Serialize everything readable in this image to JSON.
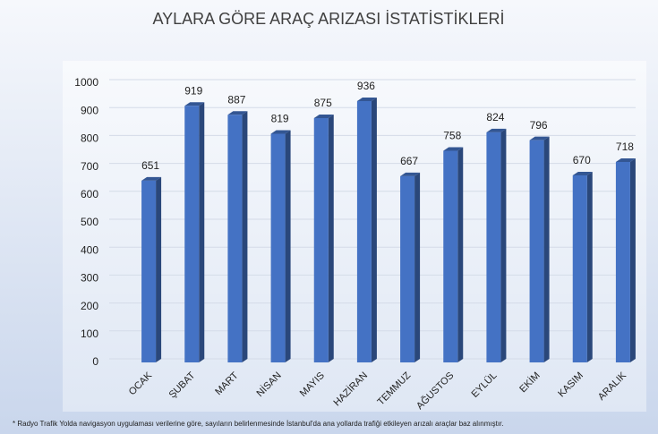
{
  "chart_data": {
    "type": "bar3d",
    "title": "AYLARA GÖRE ARAÇ ARIZASI İSTATİSTİKLERİ",
    "categories": [
      "OCAK",
      "ŞUBAT",
      "MART",
      "NİSAN",
      "MAYIS",
      "HAZİRAN",
      "TEMMUZ",
      "AĞUSTOS",
      "EYLÜL",
      "EKİM",
      "KASIM",
      "ARALIK"
    ],
    "values": [
      651,
      919,
      887,
      819,
      875,
      936,
      667,
      758,
      824,
      796,
      670,
      718
    ],
    "color": "#4472c4",
    "ylim": [
      0,
      1000
    ],
    "yticks": [
      0,
      100,
      200,
      300,
      400,
      500,
      600,
      700,
      800,
      900,
      1000
    ],
    "grid": true,
    "footnote": "* Radyo Trafik Yolda navigasyon uygulaması verilerine göre, sayıların belirlenmesinde İstanbul'da ana yollarda trafiği etkileyen arızalı araçlar baz alınmıştır."
  }
}
